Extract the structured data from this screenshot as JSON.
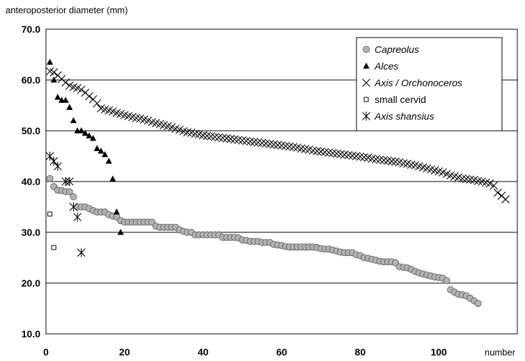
{
  "chart_data": {
    "type": "scatter",
    "ylabel": "anteroposterior diameter (mm)",
    "xlabel": "number",
    "xlim": [
      0,
      120
    ],
    "ylim": [
      10,
      70
    ],
    "x_ticks": [
      "0",
      "20",
      "40",
      "60",
      "80",
      "100"
    ],
    "y_ticks": [
      "10.0",
      "20.0",
      "30.0",
      "40.0",
      "50.0",
      "60.0",
      "70.0"
    ],
    "grid": "horizontal",
    "legend_position": "top-right",
    "series": [
      {
        "name": "Capreolus",
        "marker": "circle",
        "color": "#b3b3b3",
        "values": [
          [
            1,
            40.6
          ],
          [
            2,
            39.0
          ],
          [
            3,
            38.3
          ],
          [
            4,
            38.2
          ],
          [
            5,
            38.0
          ],
          [
            6,
            38.0
          ],
          [
            7,
            37.0
          ],
          [
            8,
            35.0
          ],
          [
            9,
            35.0
          ],
          [
            10,
            35.0
          ],
          [
            11,
            34.7
          ],
          [
            12,
            34.3
          ],
          [
            13,
            34.0
          ],
          [
            14,
            34.0
          ],
          [
            15,
            34.0
          ],
          [
            16,
            33.5
          ],
          [
            17,
            33.2
          ],
          [
            18,
            33.0
          ],
          [
            19,
            32.3
          ],
          [
            20,
            32.0
          ],
          [
            21,
            32.0
          ],
          [
            22,
            32.0
          ],
          [
            23,
            32.0
          ],
          [
            24,
            32.0
          ],
          [
            25,
            32.0
          ],
          [
            26,
            32.0
          ],
          [
            27,
            32.0
          ],
          [
            28,
            31.2
          ],
          [
            29,
            31.0
          ],
          [
            30,
            31.0
          ],
          [
            31,
            31.0
          ],
          [
            32,
            31.0
          ],
          [
            33,
            31.0
          ],
          [
            34,
            30.5
          ],
          [
            35,
            30.2
          ],
          [
            36,
            30.0
          ],
          [
            37,
            30.0
          ],
          [
            38,
            29.5
          ],
          [
            39,
            29.5
          ],
          [
            40,
            29.5
          ],
          [
            41,
            29.5
          ],
          [
            42,
            29.5
          ],
          [
            43,
            29.5
          ],
          [
            44,
            29.5
          ],
          [
            45,
            29.0
          ],
          [
            46,
            29.0
          ],
          [
            47,
            29.0
          ],
          [
            48,
            29.0
          ],
          [
            49,
            28.9
          ],
          [
            50,
            28.5
          ],
          [
            51,
            28.4
          ],
          [
            52,
            28.2
          ],
          [
            53,
            28.2
          ],
          [
            54,
            28.2
          ],
          [
            55,
            28.0
          ],
          [
            56,
            28.0
          ],
          [
            57,
            28.0
          ],
          [
            58,
            27.6
          ],
          [
            59,
            27.5
          ],
          [
            60,
            27.4
          ],
          [
            61,
            27.2
          ],
          [
            62,
            27.1
          ],
          [
            63,
            27.1
          ],
          [
            64,
            27.1
          ],
          [
            65,
            27.1
          ],
          [
            66,
            27.1
          ],
          [
            67,
            27.1
          ],
          [
            68,
            27.1
          ],
          [
            69,
            27.0
          ],
          [
            70,
            26.8
          ],
          [
            71,
            26.7
          ],
          [
            72,
            26.7
          ],
          [
            73,
            26.5
          ],
          [
            74,
            26.3
          ],
          [
            75,
            26.1
          ],
          [
            76,
            26.0
          ],
          [
            77,
            26.0
          ],
          [
            78,
            26.0
          ],
          [
            79,
            25.6
          ],
          [
            80,
            25.4
          ],
          [
            81,
            25.0
          ],
          [
            82,
            24.9
          ],
          [
            83,
            24.7
          ],
          [
            84,
            24.5
          ],
          [
            85,
            24.3
          ],
          [
            86,
            24.2
          ],
          [
            87,
            24.2
          ],
          [
            88,
            24.2
          ],
          [
            89,
            24.0
          ],
          [
            90,
            23.2
          ],
          [
            91,
            23.1
          ],
          [
            92,
            23.0
          ],
          [
            93,
            22.7
          ],
          [
            94,
            22.3
          ],
          [
            95,
            22.0
          ],
          [
            96,
            21.8
          ],
          [
            97,
            21.6
          ],
          [
            98,
            21.4
          ],
          [
            99,
            21.2
          ],
          [
            100,
            21.1
          ],
          [
            101,
            21.0
          ],
          [
            102,
            20.5
          ],
          [
            103,
            18.7
          ],
          [
            104,
            18.2
          ],
          [
            105,
            17.8
          ],
          [
            106,
            17.7
          ],
          [
            107,
            17.5
          ],
          [
            108,
            17.0
          ],
          [
            109,
            16.5
          ],
          [
            110,
            16.0
          ]
        ]
      },
      {
        "name": "Alces",
        "marker": "triangle",
        "color": "#000000",
        "values": [
          [
            1,
            63.5
          ],
          [
            2,
            60.0
          ],
          [
            3,
            56.6
          ],
          [
            4,
            56.0
          ],
          [
            5,
            56.0
          ],
          [
            6,
            54.6
          ],
          [
            7,
            52.0
          ],
          [
            8,
            50.0
          ],
          [
            9,
            50.0
          ],
          [
            10,
            49.5
          ],
          [
            11,
            49.0
          ],
          [
            12,
            48.5
          ],
          [
            13,
            46.5
          ],
          [
            14,
            46.0
          ],
          [
            15,
            45.3
          ],
          [
            16,
            44.0
          ],
          [
            17,
            40.5
          ],
          [
            18,
            34.0
          ],
          [
            19,
            30.0
          ]
        ]
      },
      {
        "name": "Axis / Orchonoceros",
        "marker": "x",
        "color": "#000000",
        "values": [
          [
            1,
            61.7
          ],
          [
            2,
            61.5
          ],
          [
            3,
            60.9
          ],
          [
            4,
            60.2
          ],
          [
            5,
            59.5
          ],
          [
            6,
            58.9
          ],
          [
            7,
            58.6
          ],
          [
            8,
            58.4
          ],
          [
            9,
            58.1
          ],
          [
            10,
            57.5
          ],
          [
            11,
            56.8
          ],
          [
            12,
            56.2
          ],
          [
            13,
            55.4
          ],
          [
            14,
            54.4
          ],
          [
            15,
            54.2
          ],
          [
            16,
            54.0
          ],
          [
            17,
            53.8
          ],
          [
            18,
            53.5
          ],
          [
            19,
            53.3
          ],
          [
            20,
            53.1
          ],
          [
            21,
            52.9
          ],
          [
            22,
            52.7
          ],
          [
            23,
            52.5
          ],
          [
            24,
            52.4
          ],
          [
            25,
            52.2
          ],
          [
            26,
            52.0
          ],
          [
            27,
            51.7
          ],
          [
            28,
            51.5
          ],
          [
            29,
            51.3
          ],
          [
            30,
            51.1
          ],
          [
            31,
            50.9
          ],
          [
            32,
            50.7
          ],
          [
            33,
            50.4
          ],
          [
            34,
            50.2
          ],
          [
            35,
            49.9
          ],
          [
            36,
            49.7
          ],
          [
            37,
            49.6
          ],
          [
            38,
            49.4
          ],
          [
            39,
            49.3
          ],
          [
            40,
            49.1
          ],
          [
            41,
            49.0
          ],
          [
            42,
            48.9
          ],
          [
            43,
            48.8
          ],
          [
            44,
            48.7
          ],
          [
            45,
            48.6
          ],
          [
            46,
            48.5
          ],
          [
            47,
            48.4
          ],
          [
            48,
            48.3
          ],
          [
            49,
            48.2
          ],
          [
            50,
            48.1
          ],
          [
            51,
            48.0
          ],
          [
            52,
            47.9
          ],
          [
            53,
            47.8
          ],
          [
            54,
            47.7
          ],
          [
            55,
            47.6
          ],
          [
            56,
            47.5
          ],
          [
            57,
            47.4
          ],
          [
            58,
            47.3
          ],
          [
            59,
            47.2
          ],
          [
            60,
            47.1
          ],
          [
            61,
            47.0
          ],
          [
            62,
            46.9
          ],
          [
            63,
            46.8
          ],
          [
            64,
            46.7
          ],
          [
            65,
            46.5
          ],
          [
            66,
            46.4
          ],
          [
            67,
            46.3
          ],
          [
            68,
            46.1
          ],
          [
            69,
            46.0
          ],
          [
            70,
            45.9
          ],
          [
            71,
            45.8
          ],
          [
            72,
            45.7
          ],
          [
            73,
            45.6
          ],
          [
            74,
            45.5
          ],
          [
            75,
            45.4
          ],
          [
            76,
            45.3
          ],
          [
            77,
            45.2
          ],
          [
            78,
            45.1
          ],
          [
            79,
            45.0
          ],
          [
            80,
            44.9
          ],
          [
            81,
            44.8
          ],
          [
            82,
            44.7
          ],
          [
            83,
            44.5
          ],
          [
            84,
            44.4
          ],
          [
            85,
            44.3
          ],
          [
            86,
            44.2
          ],
          [
            87,
            44.1
          ],
          [
            88,
            44.0
          ],
          [
            89,
            43.9
          ],
          [
            90,
            43.8
          ],
          [
            91,
            43.6
          ],
          [
            92,
            43.5
          ],
          [
            93,
            43.3
          ],
          [
            94,
            43.2
          ],
          [
            95,
            43.0
          ],
          [
            96,
            42.8
          ],
          [
            97,
            42.6
          ],
          [
            98,
            42.4
          ],
          [
            99,
            42.2
          ],
          [
            100,
            42.0
          ],
          [
            101,
            41.8
          ],
          [
            102,
            41.5
          ],
          [
            103,
            41.2
          ],
          [
            104,
            41.0
          ],
          [
            105,
            40.8
          ],
          [
            106,
            40.6
          ],
          [
            107,
            40.5
          ],
          [
            108,
            40.4
          ],
          [
            109,
            40.3
          ],
          [
            110,
            40.1
          ],
          [
            111,
            40.0
          ],
          [
            112,
            39.8
          ],
          [
            113,
            39.6
          ],
          [
            114,
            39.2
          ],
          [
            115,
            37.8
          ],
          [
            116,
            37.2
          ],
          [
            117,
            36.5
          ]
        ]
      },
      {
        "name": "small cervid",
        "marker": "square",
        "color": "#000000",
        "values": [
          [
            1,
            33.6
          ],
          [
            2,
            27.0
          ]
        ]
      },
      {
        "name": "Axis shansius",
        "marker": "asterisk",
        "color": "#000000",
        "values": [
          [
            1,
            45.0
          ],
          [
            2,
            44.0
          ],
          [
            3,
            43.0
          ],
          [
            5,
            40.0
          ],
          [
            6,
            40.0
          ],
          [
            7,
            35.0
          ],
          [
            8,
            33.0
          ],
          [
            9,
            26.0
          ]
        ]
      }
    ]
  }
}
